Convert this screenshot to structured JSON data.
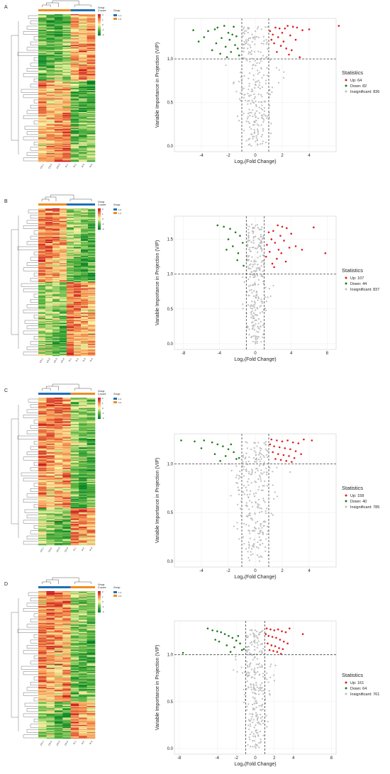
{
  "colors": {
    "up": "#e41a1c",
    "down": "#1b7a1b",
    "insig": "#bdbdbd",
    "grp1": "#1f6fb4",
    "grp2": "#f08c1e"
  },
  "panels": [
    {
      "letter": "A",
      "samples": [
        "CK-1",
        "CK-2",
        "CK-3",
        "R-1",
        "R-2",
        "R-3",
        "R-4"
      ],
      "group_labels": [
        "1.1",
        "1.5"
      ],
      "legend_title": "Statistics",
      "legend": [
        "Up: 64",
        "Down: 82",
        "Insignificant: 836"
      ]
    },
    {
      "letter": "B",
      "samples": [
        "CK-1",
        "CK-2",
        "CK-3",
        "CK-4",
        "R-1",
        "R-2",
        "R-3",
        "R-4"
      ],
      "group_labels": [
        "1.0",
        "1.2"
      ],
      "legend_title": "Statistics",
      "legend": [
        "Up: 107",
        "Down: 44",
        "Insignificant: 837"
      ]
    },
    {
      "letter": "C",
      "samples": [
        "CK-1",
        "CK-2",
        "CK-3",
        "CK-4",
        "R-1",
        "R-2",
        "R-3"
      ],
      "group_labels": [
        "1.4",
        "2.2"
      ],
      "legend_title": "Statistics",
      "legend": [
        "Up: 158",
        "Down: 40",
        "Insignificant: 785"
      ]
    },
    {
      "letter": "D",
      "samples": [
        "CK-1",
        "CK-2",
        "CK-3",
        "CK-4",
        "R-1",
        "R-2",
        "R-3"
      ],
      "group_labels": [
        "1.4",
        "2.3"
      ],
      "legend_title": "Statistics",
      "legend": [
        "Up: 161",
        "Down: 64",
        "Insignificant: 761"
      ]
    }
  ],
  "heat_legend": {
    "group_title": "Group",
    "z_title": "Z-score",
    "ticks": [
      "2",
      "1",
      "0",
      "-1",
      "-2"
    ]
  },
  "chart_data": [
    {
      "type": "scatter",
      "panel": "A",
      "xlabel": "Log₂(Fold Change)",
      "ylabel": "Variable Importance in Projection (VIP)",
      "xlim": [
        -6,
        6
      ],
      "ylim": [
        0,
        1.4
      ],
      "xticks": [
        -4,
        -2,
        0,
        2,
        4
      ],
      "yticks": [
        0.0,
        0.5,
        1.0
      ],
      "thresholds": {
        "x": [
          -1,
          1
        ],
        "y": 1.0
      },
      "counts": {
        "up": 64,
        "down": 82,
        "insig": 836
      },
      "up_x": [
        2.4,
        2.8,
        3.1,
        1.5,
        1.8,
        2.2,
        3.5,
        4.0,
        6.2,
        2.0,
        1.3,
        1.7,
        2.6,
        3.0,
        2.1,
        1.4,
        1.9,
        2.3,
        2.7,
        1.6,
        1.2,
        2.5,
        1.1,
        3.3
      ],
      "up_y": [
        1.38,
        1.37,
        1.36,
        1.36,
        1.35,
        1.35,
        1.33,
        1.34,
        1.38,
        1.3,
        1.28,
        1.25,
        1.27,
        1.22,
        1.2,
        1.18,
        1.15,
        1.12,
        1.1,
        1.08,
        1.22,
        1.05,
        1.32,
        1.02
      ],
      "down_x": [
        -2.3,
        -2.8,
        -3.0,
        -3.5,
        -2.0,
        -1.7,
        -1.4,
        -2.5,
        -1.9,
        -4.2,
        -2.9,
        -1.5,
        -2.2,
        -1.3,
        -3.2,
        -1.8,
        -2.6,
        -1.2,
        -4.6,
        -2.1,
        -1.6,
        -3.8
      ],
      "down_y": [
        1.38,
        1.36,
        1.34,
        1.32,
        1.3,
        1.28,
        1.26,
        1.24,
        1.22,
        1.2,
        1.18,
        1.16,
        1.14,
        1.12,
        1.1,
        1.08,
        1.06,
        1.04,
        1.33,
        1.02,
        1.37,
        1.25
      ]
    },
    {
      "type": "scatter",
      "panel": "B",
      "xlabel": "Log₂(Fold Change)",
      "ylabel": "Variable Importance in Projection (VIP)",
      "xlim": [
        -9,
        9
      ],
      "ylim": [
        0,
        1.75
      ],
      "xticks": [
        -8,
        -4,
        0,
        4,
        8
      ],
      "yticks": [
        0.0,
        0.5,
        1.0,
        1.5
      ],
      "thresholds": {
        "x": [
          -1,
          1
        ],
        "y": 1.0
      },
      "counts": {
        "up": 107,
        "down": 44,
        "insig": 837
      },
      "up_x": [
        2.5,
        3.0,
        3.5,
        2.0,
        1.5,
        4.0,
        6.5,
        7.8,
        2.8,
        1.8,
        3.2,
        2.2,
        1.3,
        4.5,
        3.8,
        2.6,
        1.6,
        2.9,
        1.2,
        2.4,
        3.4,
        1.9,
        5.2,
        2.1
      ],
      "up_y": [
        1.7,
        1.68,
        1.66,
        1.62,
        1.6,
        1.58,
        1.67,
        1.3,
        1.55,
        1.5,
        1.48,
        1.45,
        1.42,
        1.4,
        1.38,
        1.35,
        1.32,
        1.3,
        1.25,
        1.22,
        1.18,
        1.15,
        1.35,
        1.1
      ],
      "down_x": [
        -4.2,
        -3.5,
        -2.8,
        -2.2,
        -1.7,
        -3.0,
        -1.4,
        -2.5,
        -3.2,
        -1.9,
        -2.0,
        -1.3
      ],
      "down_y": [
        1.7,
        1.68,
        1.65,
        1.6,
        1.55,
        1.5,
        1.45,
        1.4,
        1.35,
        1.3,
        1.2,
        1.12
      ]
    },
    {
      "type": "scatter",
      "panel": "C",
      "xlabel": "Log₂(Fold Change)",
      "ylabel": "Variable Importance in Projection (VIP)",
      "xlim": [
        -6,
        6
      ],
      "ylim": [
        0,
        1.25
      ],
      "xticks": [
        -4,
        -2,
        0,
        2,
        4
      ],
      "yticks": [
        0.0,
        0.5,
        1.0
      ],
      "thresholds": {
        "x": [
          -1,
          1
        ],
        "y": 1.0
      },
      "counts": {
        "up": 158,
        "down": 40,
        "insig": 785
      },
      "up_x": [
        1.2,
        1.6,
        2.0,
        2.4,
        2.8,
        3.2,
        3.6,
        4.2,
        1.4,
        1.8,
        2.2,
        2.6,
        3.0,
        1.3,
        1.7,
        2.1,
        2.5,
        2.9,
        1.5,
        1.9,
        2.3,
        1.1,
        3.4,
        2.7
      ],
      "up_y": [
        1.25,
        1.24,
        1.23,
        1.24,
        1.22,
        1.21,
        1.25,
        1.24,
        1.18,
        1.17,
        1.16,
        1.15,
        1.13,
        1.12,
        1.1,
        1.09,
        1.08,
        1.06,
        1.05,
        1.04,
        1.03,
        1.2,
        1.1,
        1.02
      ],
      "down_x": [
        -5.5,
        -4.5,
        -3.8,
        -3.2,
        -2.8,
        -2.4,
        -2.0,
        -1.6,
        -3.0,
        -2.2,
        -1.4,
        -2.6,
        -1.8,
        -4.0,
        -1.2
      ],
      "down_y": [
        1.24,
        1.23,
        1.24,
        1.22,
        1.2,
        1.18,
        1.15,
        1.12,
        1.1,
        1.08,
        1.05,
        1.03,
        1.2,
        1.16,
        1.06
      ]
    },
    {
      "type": "scatter",
      "panel": "D",
      "xlabel": "Log₂(Fold Change)",
      "ylabel": "Variable Importance in Projection (VIP)",
      "xlim": [
        -8.5,
        8.5
      ],
      "ylim": [
        0,
        1.3
      ],
      "xticks": [
        -8,
        -4,
        -2,
        0,
        2,
        4,
        8
      ],
      "yticks": [
        0.0,
        0.5,
        1.0
      ],
      "thresholds": {
        "x": [
          -1,
          1
        ],
        "y": 1.0
      },
      "counts": {
        "up": 161,
        "down": 64,
        "insig": 761
      },
      "up_x": [
        1.2,
        1.6,
        2.0,
        2.4,
        2.8,
        3.2,
        3.6,
        5.0,
        1.4,
        1.8,
        2.2,
        2.6,
        3.0,
        1.3,
        1.7,
        2.1,
        2.5,
        2.9,
        1.5,
        1.9,
        2.3,
        1.1,
        3.4,
        2.7
      ],
      "up_y": [
        1.28,
        1.27,
        1.26,
        1.27,
        1.25,
        1.24,
        1.28,
        1.22,
        1.2,
        1.19,
        1.18,
        1.16,
        1.14,
        1.12,
        1.1,
        1.09,
        1.07,
        1.06,
        1.05,
        1.04,
        1.03,
        1.22,
        1.12,
        1.01
      ],
      "down_x": [
        -7.6,
        -5.0,
        -4.5,
        -4.0,
        -3.6,
        -3.2,
        -2.8,
        -2.4,
        -2.0,
        -1.6,
        -3.0,
        -2.2,
        -1.4,
        -2.6,
        -1.8,
        -4.2,
        -1.2,
        -3.8
      ],
      "down_y": [
        1.02,
        1.28,
        1.26,
        1.25,
        1.24,
        1.22,
        1.2,
        1.18,
        1.15,
        1.12,
        1.1,
        1.08,
        1.05,
        1.03,
        1.2,
        1.16,
        1.06,
        1.14
      ]
    }
  ]
}
